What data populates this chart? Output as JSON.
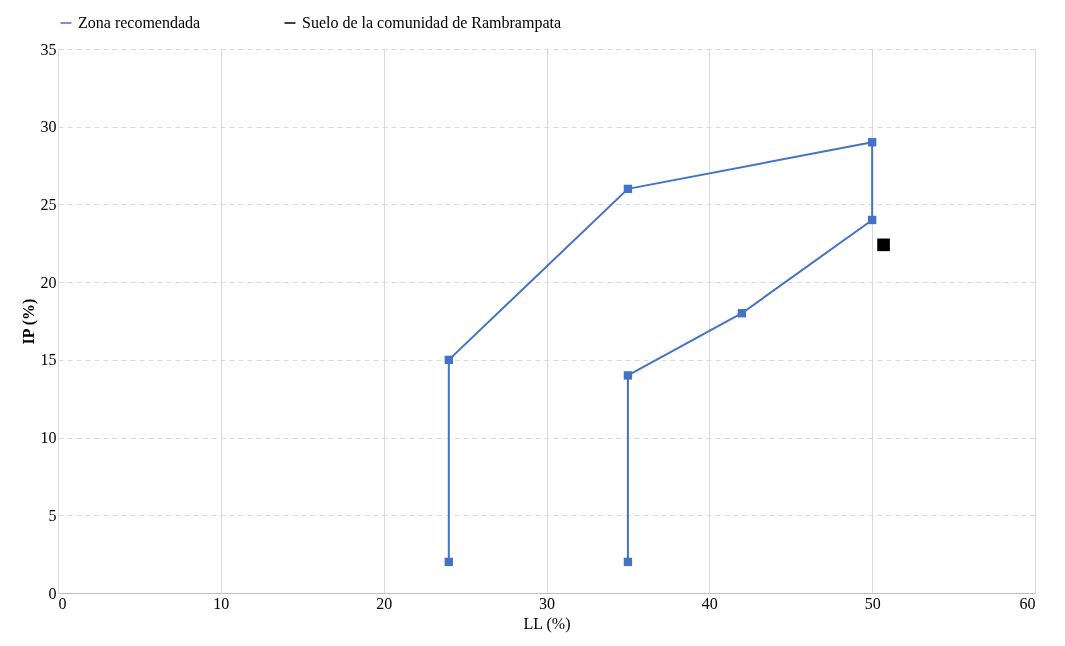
{
  "chart_data": {
    "type": "line",
    "xlabel": "LL (%)",
    "ylabel": "IP (%)",
    "xlim": [
      0,
      60
    ],
    "xticks": [
      0,
      10,
      20,
      30,
      40,
      50,
      60
    ],
    "ylim": [
      0,
      35
    ],
    "yticks": [
      0,
      5,
      10,
      15,
      20,
      25,
      30,
      35
    ],
    "grid": true,
    "legend": "top",
    "series": [
      {
        "name": "Zona recomendada",
        "color": "#4472c4",
        "marker": "square",
        "line_style": "solid",
        "x": [
          24,
          24,
          35,
          50,
          50,
          42,
          35,
          35
        ],
        "values": [
          2,
          15,
          26,
          29,
          24,
          18,
          14,
          2
        ]
      },
      {
        "name": "Suelo de la comunidad de Rambrampata",
        "type": "scatter",
        "color": "#000000",
        "marker": "square",
        "x": [
          50.7
        ],
        "values": [
          22.4
        ]
      }
    ]
  }
}
